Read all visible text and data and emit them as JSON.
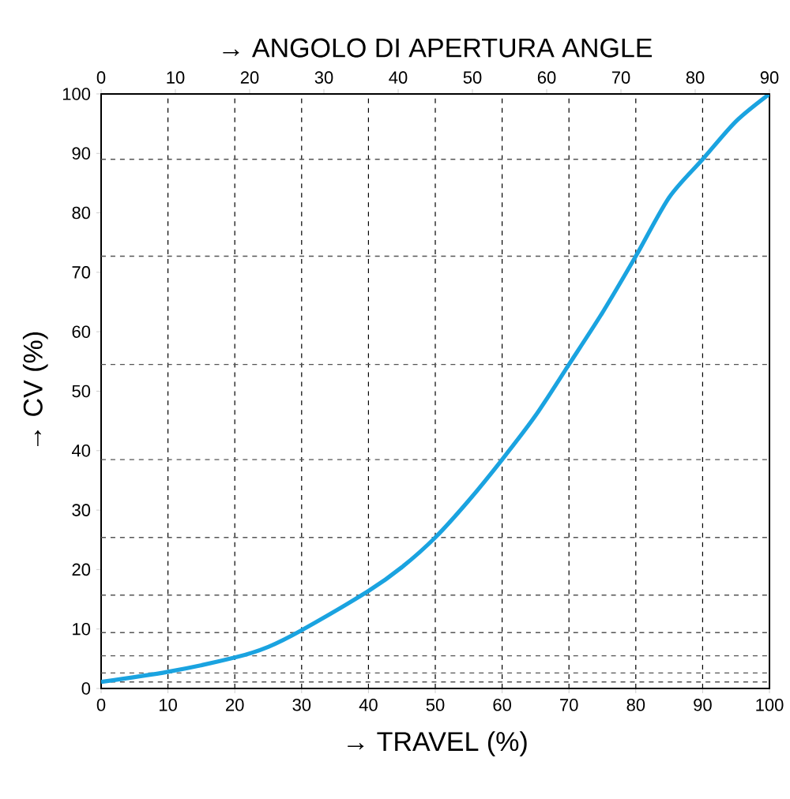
{
  "chart_data": {
    "type": "line",
    "xlabel": "→ TRAVEL (%)",
    "ylabel": "→ CV (%)",
    "x2label": "→ ANGOLO DI APERTURA  ANGLE",
    "xlim": [
      0,
      100
    ],
    "xticks": [
      0,
      10,
      20,
      30,
      40,
      50,
      60,
      70,
      80,
      90,
      100
    ],
    "x2lim": [
      0,
      90
    ],
    "x2ticks": [
      0,
      10,
      20,
      30,
      40,
      50,
      60,
      70,
      80,
      90
    ],
    "ylim": [
      0,
      100
    ],
    "yticks": [
      0,
      10,
      20,
      30,
      40,
      50,
      60,
      70,
      80,
      90,
      100
    ],
    "grid": "x",
    "series": [
      {
        "color": "#1aa3e0",
        "x": [
          0,
          10,
          20,
          25,
          30,
          40,
          45,
          50,
          55,
          60,
          65,
          70,
          75,
          80,
          85,
          90,
          95,
          100
        ],
        "values": [
          1.1,
          2.8,
          5.2,
          7.0,
          9.8,
          16.4,
          20.4,
          25.4,
          31.6,
          38.5,
          45.9,
          54.5,
          63.2,
          72.7,
          82.6,
          89.0,
          95.4,
          100
        ]
      }
    ],
    "ref_lines": [
      {
        "axis": "y",
        "value": 1.1,
        "color": "#555555",
        "line_style": "dashed"
      },
      {
        "axis": "y",
        "value": 2.6,
        "color": "#555555",
        "line_style": "dashed"
      },
      {
        "axis": "y",
        "value": 5.5,
        "color": "#555555",
        "line_style": "dashed"
      },
      {
        "axis": "y",
        "value": 9.4,
        "color": "#555555",
        "line_style": "dashed"
      },
      {
        "axis": "y",
        "value": 15.7,
        "color": "#555555",
        "line_style": "dashed"
      },
      {
        "axis": "y",
        "value": 25.4,
        "color": "#555555",
        "line_style": "dashed"
      },
      {
        "axis": "y",
        "value": 38.5,
        "color": "#555555",
        "line_style": "dashed"
      },
      {
        "axis": "y",
        "value": 54.5,
        "color": "#555555",
        "line_style": "dashed"
      },
      {
        "axis": "y",
        "value": 72.7,
        "color": "#555555",
        "line_style": "dashed"
      },
      {
        "axis": "y",
        "value": 89.0,
        "color": "#555555",
        "line_style": "dashed"
      }
    ]
  }
}
